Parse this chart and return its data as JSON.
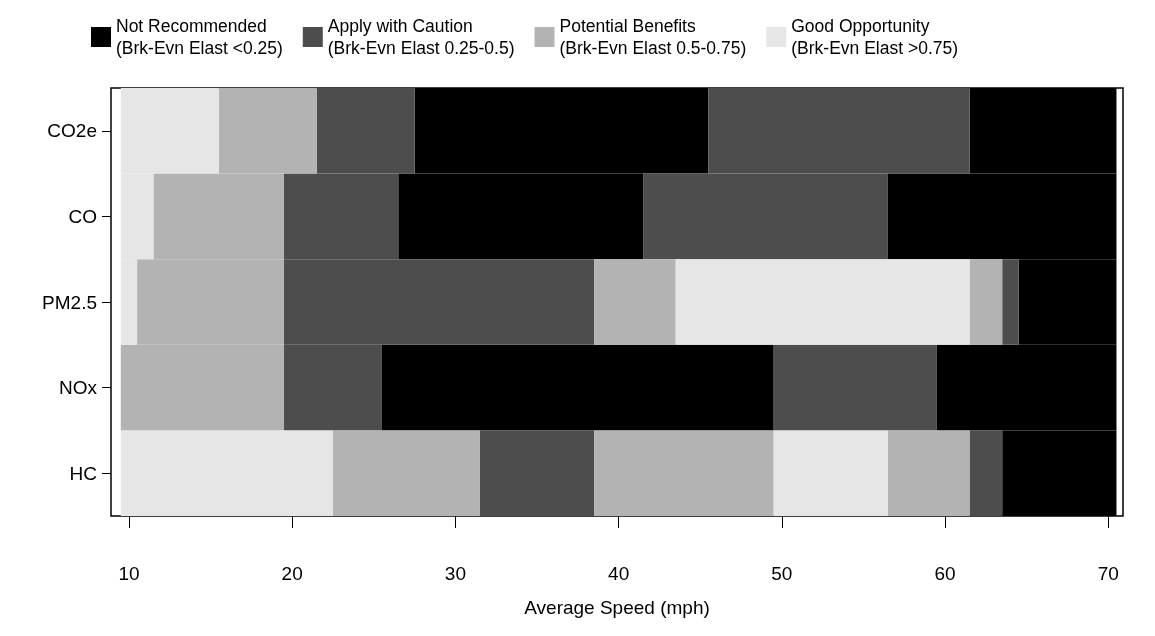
{
  "chart_data": {
    "type": "bar",
    "orientation": "horizontal",
    "xlabel": "Average Speed (mph)",
    "categories": [
      "CO2e",
      "CO",
      "PM2.5",
      "NOx",
      "HC"
    ],
    "xlim": [
      8.9,
      70.9
    ],
    "xticks": [
      10,
      20,
      30,
      40,
      50,
      60,
      70
    ],
    "grid": false,
    "legend": "top",
    "series": [
      {
        "name": "Not Recommended\n(Brk-Evn Elast <0.25)",
        "color": "#000000",
        "base": [
          27.5,
          26.5,
          64.5,
          25.5,
          63.5
        ],
        "values": [
          18,
          15,
          6,
          24,
          7
        ]
      },
      {
        "name": "Apply with Caution\n(Brk-Evn Elast 0.25-0.5)",
        "color": "#4d4d4d",
        "base": [
          21.5,
          19.5,
          19.5,
          19.5,
          31.5
        ],
        "values": [
          6,
          7,
          19,
          6,
          7
        ]
      },
      {
        "name": "Potential Benefits\n(Brk-Evn Elast 0.5-0.75)",
        "color": "#b3b3b3",
        "base": [
          15.5,
          11.5,
          10.5,
          9.5,
          22.5
        ],
        "values": [
          6,
          8,
          9,
          10,
          9
        ]
      },
      {
        "name": "Good Opportunity\n(Brk-Evn Elast >0.75)",
        "color": "#e6e6e6",
        "base": [
          9.5,
          9.5,
          9.5,
          null,
          9.5
        ],
        "values": [
          6,
          2,
          1,
          null,
          13
        ]
      },
      {
        "color": "#000000",
        "base": [
          61.5,
          56.5,
          null,
          59.5,
          null
        ],
        "values": [
          9,
          14,
          null,
          11,
          null
        ]
      },
      {
        "color": "#4d4d4d",
        "base": [
          45.5,
          41.5,
          63.5,
          49.5,
          61.5
        ],
        "values": [
          16,
          15,
          1,
          10,
          2
        ]
      },
      {
        "color": "#b3b3b3",
        "base": [
          null,
          null,
          38.5,
          null,
          38.5
        ],
        "values": [
          null,
          null,
          5,
          null,
          11
        ]
      },
      {
        "color": "#b3b3b3",
        "base": [
          null,
          null,
          61.5,
          null,
          56.5
        ],
        "values": [
          null,
          null,
          2,
          null,
          5
        ]
      },
      {
        "color": "#e6e6e6",
        "base": [
          null,
          null,
          43.5,
          null,
          49.5
        ],
        "values": [
          null,
          null,
          18,
          null,
          7
        ]
      }
    ]
  }
}
